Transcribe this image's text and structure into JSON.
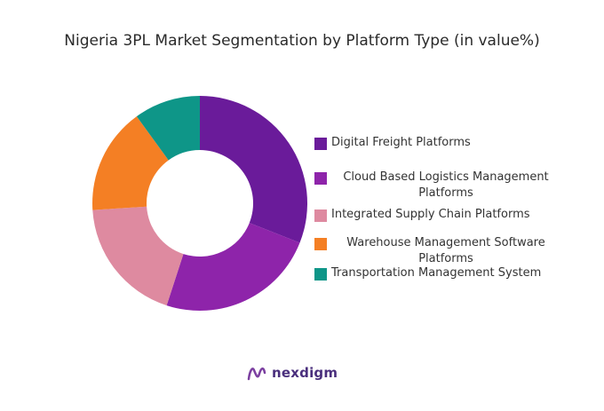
{
  "chart_data": {
    "type": "pie",
    "title": "Nigeria 3PL Market Segmentation by Platform Type (in value%)",
    "donut": true,
    "legend_position": "right",
    "categories": [
      "Digital Freight Platforms",
      "Cloud Based Logistics Management Platforms",
      "Integrated Supply Chain Platforms",
      "Warehouse Management Software Platforms",
      "Transportation Management System"
    ],
    "values": [
      31,
      24,
      19,
      16,
      10
    ],
    "colors": [
      "#6a1b9a",
      "#8e24aa",
      "#de8aa0",
      "#f47f24",
      "#0e9688"
    ]
  },
  "branding": {
    "logo_text": "nexdigm"
  }
}
